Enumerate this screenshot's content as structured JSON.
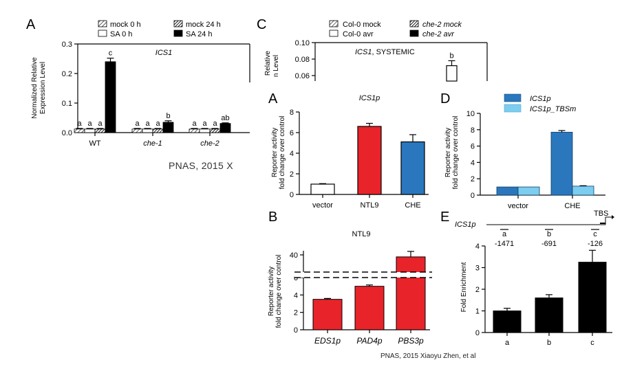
{
  "credits": {
    "left": "PNAS, 2015 X",
    "bottom": "PNAS, 2015 Xiaoyu Zhen, et al"
  },
  "colors": {
    "red": "#e8232a",
    "blue": "#2a77bd",
    "light_blue": "#7ccdf0",
    "black": "#000000",
    "white": "#ffffff"
  },
  "chart_data": [
    {
      "id": "A_top",
      "letter": "A",
      "type": "bar",
      "title": "ICS1",
      "ylabel": [
        "Normalized Relative",
        "Expression Level"
      ],
      "ylim": [
        0,
        0.3
      ],
      "yticks": [
        "0.0",
        "0.1",
        "0.2",
        "0.3"
      ],
      "categories": [
        "WT",
        "che-1",
        "che-2"
      ],
      "category_italic": [
        false,
        true,
        true
      ],
      "legend": [
        "mock 0 h",
        "SA 0 h",
        "mock 24 h",
        "SA 24 h"
      ],
      "series": [
        {
          "name": "mock 0 h",
          "style": "hatch-light",
          "values": [
            0.012,
            0.012,
            0.012
          ],
          "errors": [
            0.002,
            0.002,
            0.002
          ],
          "labels": [
            "a",
            "a",
            "a"
          ]
        },
        {
          "name": "SA 0 h",
          "style": "white",
          "values": [
            0.012,
            0.012,
            0.012
          ],
          "errors": [
            0.002,
            0.002,
            0.002
          ],
          "labels": [
            "a",
            "a",
            "a"
          ]
        },
        {
          "name": "mock 24 h",
          "style": "hatch-dark",
          "values": [
            0.012,
            0.012,
            0.012
          ],
          "errors": [
            0.002,
            0.002,
            0.002
          ],
          "labels": [
            "a",
            "a",
            "a"
          ]
        },
        {
          "name": "SA 24 h",
          "style": "black",
          "values": [
            0.24,
            0.035,
            0.031
          ],
          "errors": [
            0.012,
            0.005,
            0.002
          ],
          "labels": [
            "c",
            "b",
            "ab"
          ]
        }
      ]
    },
    {
      "id": "C_top",
      "letter": "C",
      "type": "bar",
      "title": "ICS1, SYSTEMIC",
      "title_italic_part": "ICS1",
      "title_rest": ", SYSTEMIC",
      "ylabel_visible": [
        "Relative",
        "n Level"
      ],
      "yticks": [
        "0.10",
        "0.08",
        "0.06"
      ],
      "ytick_values": [
        0.1,
        0.08,
        0.06
      ],
      "legend": [
        "Col-0 mock",
        "Col-0 avr",
        "che-2 mock",
        "che-2 avr"
      ],
      "visible_bar": {
        "label": "b",
        "value": 0.072,
        "error": 0.006
      }
    },
    {
      "id": "A_small",
      "letter": "A",
      "type": "bar",
      "title": "ICS1p",
      "ylabel": [
        "Reporter activity",
        "fold change over control"
      ],
      "ylim": [
        0,
        8
      ],
      "yticks": [
        "0",
        "2",
        "4",
        "6",
        "8"
      ],
      "categories": [
        "vector",
        "NTL9",
        "CHE"
      ],
      "values": [
        1.0,
        6.6,
        5.1
      ],
      "errors": [
        0.05,
        0.3,
        0.7
      ],
      "bar_colors": [
        "#ffffff",
        "#e8232a",
        "#2a77bd"
      ]
    },
    {
      "id": "B",
      "letter": "B",
      "type": "bar",
      "title": "NTL9",
      "ylabel": [
        "Reporter activity",
        "fold change over control"
      ],
      "yticks": [
        "0",
        "2",
        "4",
        "6",
        "40"
      ],
      "categories": [
        "EDS1p",
        "PAD4p",
        "PBS3p"
      ],
      "values": [
        3.5,
        5.0,
        39.0
      ],
      "errors": [
        0.1,
        0.15,
        5.0
      ],
      "bar_color": "#e8232a",
      "axis_break": [
        6.5,
        30
      ]
    },
    {
      "id": "D",
      "letter": "D",
      "type": "bar",
      "title": "",
      "ylabel": [
        "Reporter activity",
        "fold change over control"
      ],
      "ylim": [
        0,
        10
      ],
      "yticks": [
        "0",
        "2",
        "4",
        "6",
        "8",
        "10"
      ],
      "categories": [
        "vector",
        "CHE"
      ],
      "legend": [
        "ICS1p",
        "ICS1p_TBSm"
      ],
      "series": [
        {
          "name": "ICS1p",
          "color": "#2a77bd",
          "values": [
            1.0,
            7.7
          ],
          "errors": [
            0.0,
            0.2
          ]
        },
        {
          "name": "ICS1p_TBSm",
          "color": "#7ccdf0",
          "values": [
            1.0,
            1.1
          ],
          "errors": [
            0.0,
            0.05
          ]
        }
      ]
    },
    {
      "id": "E",
      "letter": "E",
      "type": "bar",
      "title": "",
      "ylabel": [
        "Fold Enrichment"
      ],
      "ylim": [
        0,
        4
      ],
      "yticks": [
        "0",
        "1",
        "2",
        "3",
        "4"
      ],
      "categories": [
        "a",
        "b",
        "c"
      ],
      "values": [
        1.0,
        1.6,
        3.25
      ],
      "errors": [
        0.12,
        0.15,
        0.55
      ],
      "bar_color": "#000000",
      "promoter": {
        "gene": "ICS1p",
        "site": "TBS",
        "regions": [
          {
            "letter": "a",
            "pos": "-1471"
          },
          {
            "letter": "b",
            "pos": "-691"
          },
          {
            "letter": "c",
            "pos": "-126"
          }
        ]
      }
    }
  ]
}
